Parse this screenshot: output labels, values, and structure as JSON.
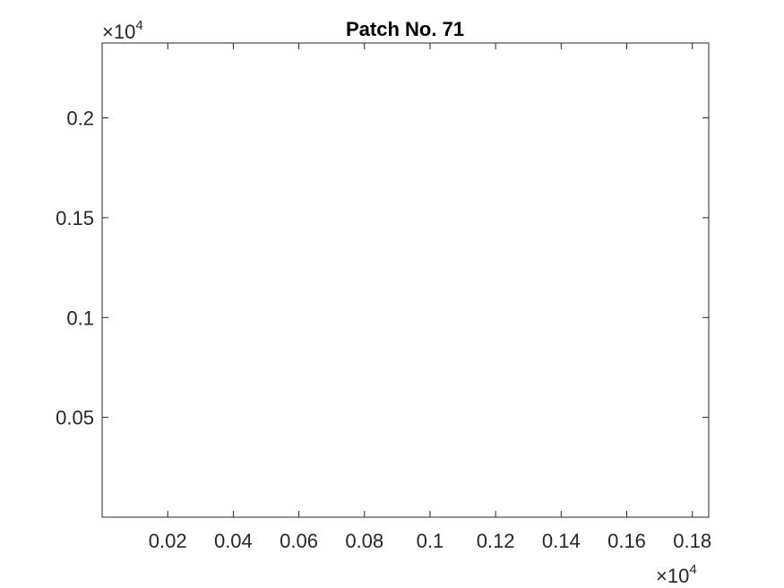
{
  "chart_data": {
    "type": "scatter",
    "title": "Patch No. 71",
    "xlabel": "",
    "ylabel": "",
    "x_multiplier": "×10",
    "x_multiplier_exp": "4",
    "y_multiplier": "×10",
    "y_multiplier_exp": "4",
    "xlim": [
      0,
      0.185
    ],
    "ylim": [
      0,
      0.2375
    ],
    "x_ticks": [
      0.02,
      0.04,
      0.06,
      0.08,
      0.1,
      0.12,
      0.14,
      0.16,
      0.18
    ],
    "x_tick_labels": [
      "0.02",
      "0.04",
      "0.06",
      "0.08",
      "0.1",
      "0.12",
      "0.14",
      "0.16",
      "0.18"
    ],
    "y_ticks": [
      0.05,
      0.1,
      0.15,
      0.2
    ],
    "y_tick_labels": [
      "0.05",
      "0.1",
      "0.15",
      "0.2"
    ],
    "grid": false,
    "series": []
  }
}
